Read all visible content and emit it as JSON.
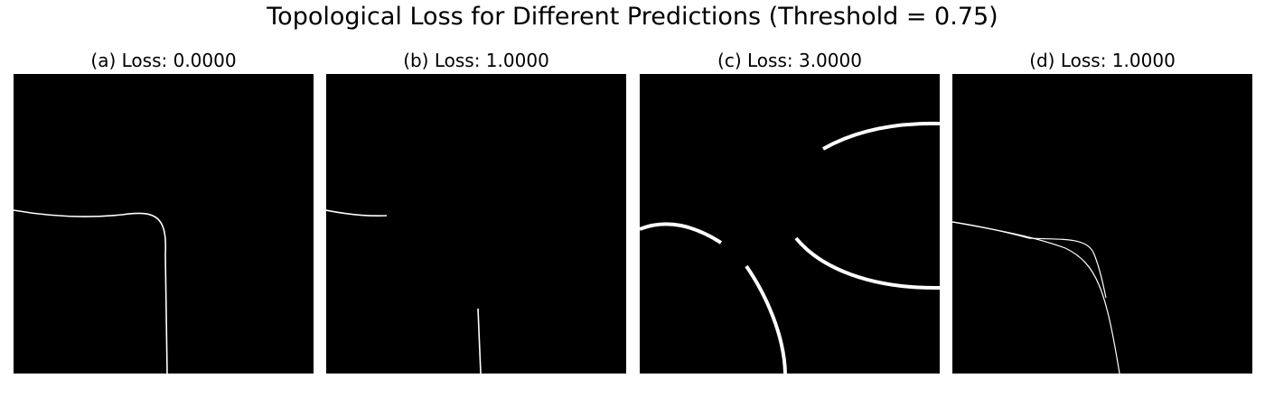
{
  "title": "Topological Loss for Different Predictions (Threshold = 0.75)",
  "chart_data": [
    {
      "type": "image",
      "title": "(a) Loss: 0.0000",
      "loss": 0.0,
      "colors": {
        "background": "#000000",
        "foreground": "#ffffff"
      }
    },
    {
      "type": "image",
      "title": "(b) Loss: 1.0000",
      "loss": 1.0,
      "colors": {
        "background": "#000000",
        "foreground": "#ffffff"
      }
    },
    {
      "type": "image",
      "title": "(c) Loss: 3.0000",
      "loss": 3.0,
      "colors": {
        "background": "#000000",
        "foreground": "#ffffff"
      }
    },
    {
      "type": "image",
      "title": "(d) Loss: 1.0000",
      "loss": 1.0,
      "colors": {
        "background": "#000000",
        "foreground": "#ffffff"
      }
    }
  ]
}
